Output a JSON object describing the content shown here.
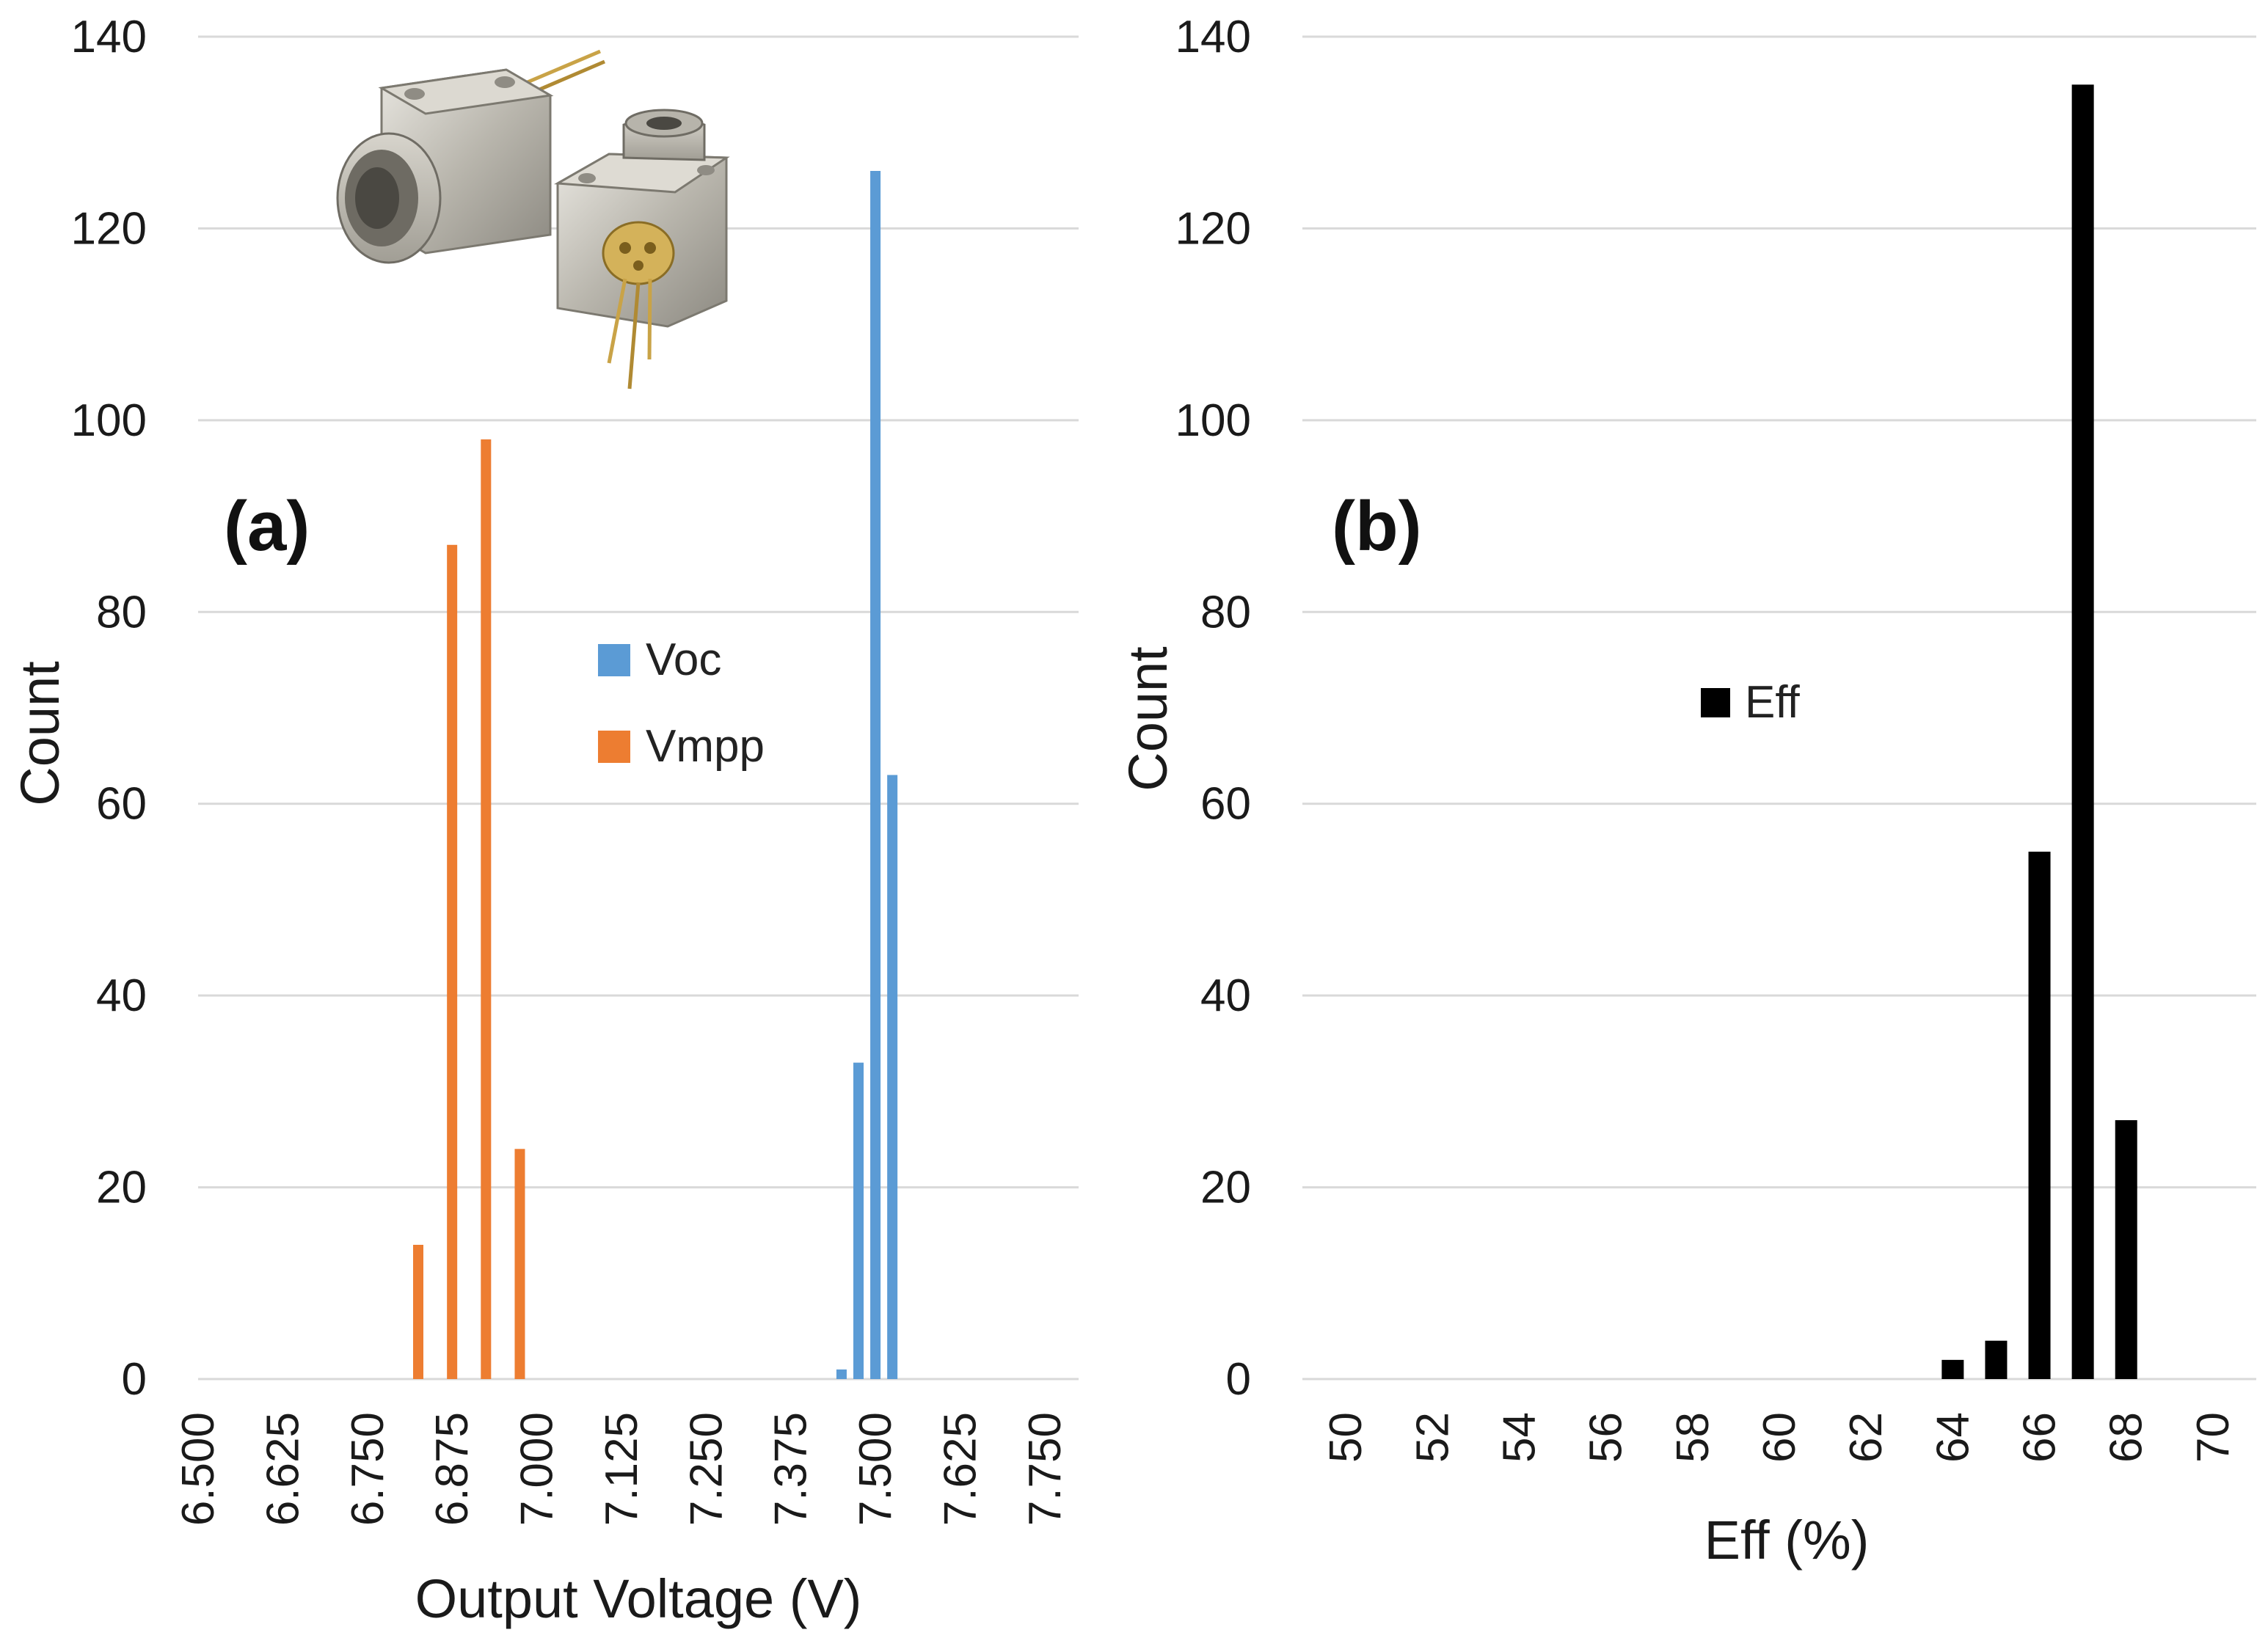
{
  "chart_data": [
    {
      "type": "bar",
      "panel_label": "(a)",
      "xlabel": "Output Voltage (V)",
      "ylabel": "Count",
      "ylim": [
        0,
        140
      ],
      "yticks": [
        "0",
        "20",
        "40",
        "60",
        "80",
        "100",
        "120",
        "140"
      ],
      "xlim": [
        6.5,
        7.8
      ],
      "xticks": [
        "6.500",
        "6.625",
        "6.750",
        "6.875",
        "7.000",
        "7.125",
        "7.250",
        "7.375",
        "7.500",
        "7.625",
        "7.750"
      ],
      "grid": true,
      "legend_position": "center",
      "inset_image": "photodetector-package-photo",
      "series": [
        {
          "name": "Voc",
          "color": "#5b9bd5",
          "x": [
            7.45,
            7.475,
            7.5,
            7.525
          ],
          "values": [
            1,
            33,
            126,
            63
          ]
        },
        {
          "name": "Vmpp",
          "color": "#ed7d31",
          "x": [
            6.825,
            6.875,
            6.925,
            6.975
          ],
          "values": [
            14,
            87,
            98,
            24
          ]
        }
      ]
    },
    {
      "type": "bar",
      "panel_label": "(b)",
      "xlabel": "Eff (%)",
      "ylabel": "Count",
      "ylim": [
        0,
        140
      ],
      "yticks": [
        "0",
        "20",
        "40",
        "60",
        "80",
        "100",
        "120",
        "140"
      ],
      "xlim": [
        49,
        71
      ],
      "xticks": [
        "50",
        "52",
        "54",
        "56",
        "58",
        "60",
        "62",
        "64",
        "66",
        "68",
        "70"
      ],
      "grid": true,
      "legend_position": "center-left",
      "series": [
        {
          "name": "Eff",
          "color": "#000000",
          "x": [
            64,
            65,
            66,
            67,
            68
          ],
          "values": [
            2,
            4,
            55,
            135,
            27
          ]
        }
      ]
    }
  ]
}
